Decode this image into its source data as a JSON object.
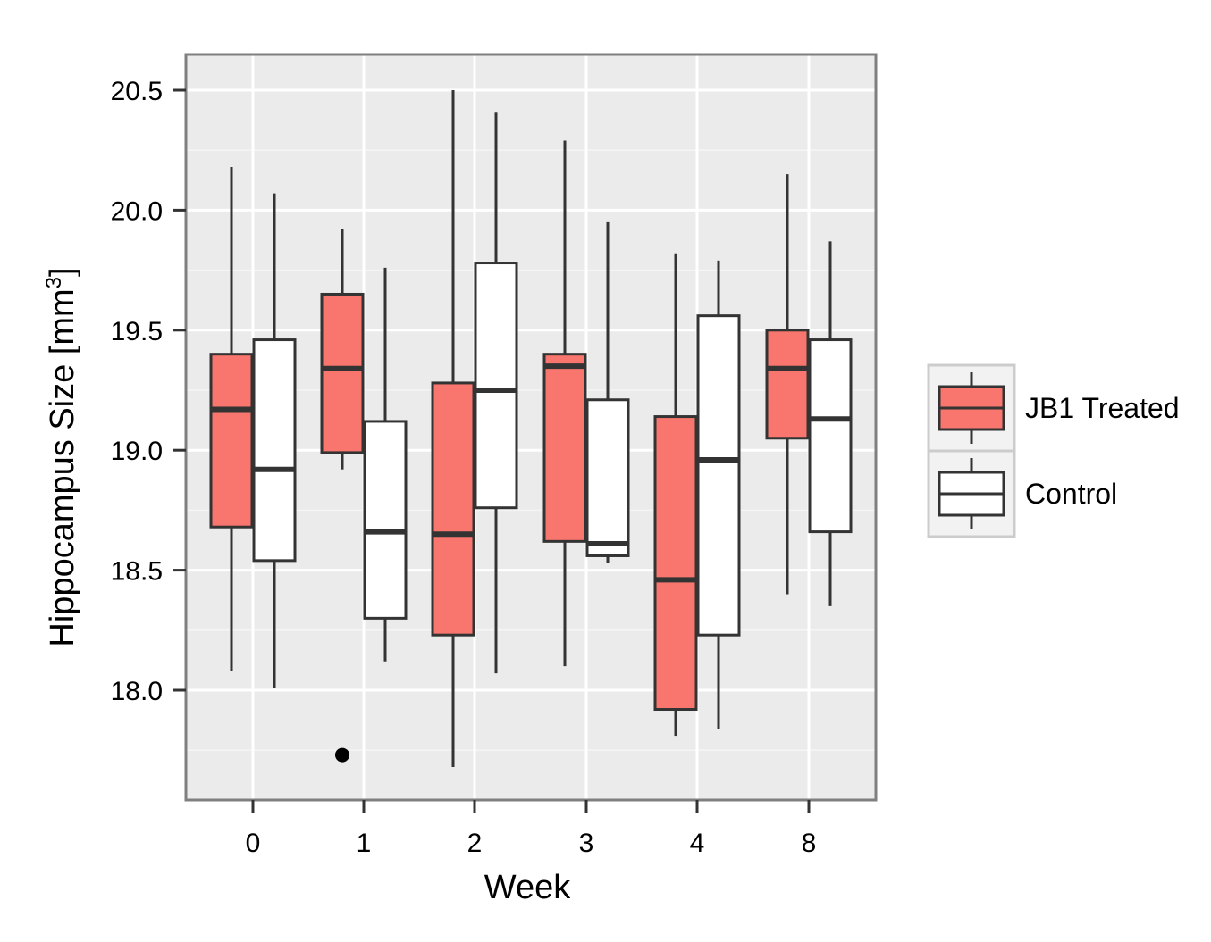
{
  "chart_data": {
    "type": "boxplot",
    "title": "",
    "xlabel": "Week",
    "ylabel": "Hippocampus Size [mm",
    "ylabel_sup": "3",
    "ylabel_end": "]",
    "ylim": [
      17.6,
      20.65
    ],
    "yticks": [
      18.0,
      18.5,
      19.0,
      19.5,
      20.0,
      20.5
    ],
    "ytick_labels": [
      "18.0",
      "18.5",
      "19.0",
      "19.5",
      "20.0",
      "20.5"
    ],
    "categories": [
      "0",
      "1",
      "2",
      "3",
      "4",
      "8"
    ],
    "series": [
      {
        "name": "JB1 Treated",
        "fill": "#F8766D",
        "boxes": [
          {
            "category": "0",
            "whisker_low": 18.08,
            "q1": 18.68,
            "median": 19.17,
            "q3": 19.4,
            "whisker_high": 20.18,
            "outliers": []
          },
          {
            "category": "1",
            "whisker_low": 18.92,
            "q1": 18.99,
            "median": 19.34,
            "q3": 19.65,
            "whisker_high": 19.92,
            "outliers": [
              17.73
            ]
          },
          {
            "category": "2",
            "whisker_low": 17.68,
            "q1": 18.23,
            "median": 18.65,
            "q3": 19.28,
            "whisker_high": 20.5,
            "outliers": []
          },
          {
            "category": "3",
            "whisker_low": 18.1,
            "q1": 18.62,
            "median": 19.35,
            "q3": 19.4,
            "whisker_high": 20.29,
            "outliers": []
          },
          {
            "category": "4",
            "whisker_low": 17.81,
            "q1": 17.92,
            "median": 18.46,
            "q3": 19.14,
            "whisker_high": 19.82,
            "outliers": []
          },
          {
            "category": "8",
            "whisker_low": 18.4,
            "q1": 19.05,
            "median": 19.34,
            "q3": 19.5,
            "whisker_high": 20.15,
            "outliers": []
          }
        ]
      },
      {
        "name": "Control",
        "fill": "#FFFFFF",
        "boxes": [
          {
            "category": "0",
            "whisker_low": 18.01,
            "q1": 18.54,
            "median": 18.92,
            "q3": 19.46,
            "whisker_high": 20.07,
            "outliers": []
          },
          {
            "category": "1",
            "whisker_low": 18.12,
            "q1": 18.3,
            "median": 18.66,
            "q3": 19.12,
            "whisker_high": 19.76,
            "outliers": []
          },
          {
            "category": "2",
            "whisker_low": 18.07,
            "q1": 18.76,
            "median": 19.25,
            "q3": 19.78,
            "whisker_high": 20.41,
            "outliers": []
          },
          {
            "category": "3",
            "whisker_low": 18.53,
            "q1": 18.56,
            "median": 18.61,
            "q3": 19.21,
            "whisker_high": 19.95,
            "outliers": []
          },
          {
            "category": "4",
            "whisker_low": 17.84,
            "q1": 18.23,
            "median": 18.96,
            "q3": 19.56,
            "whisker_high": 19.79,
            "outliers": []
          },
          {
            "category": "8",
            "whisker_low": 18.35,
            "q1": 18.66,
            "median": 19.13,
            "q3": 19.46,
            "whisker_high": 19.87,
            "outliers": []
          }
        ]
      }
    ],
    "legend": {
      "position": "right",
      "entries": [
        "JB1 Treated",
        "Control"
      ]
    },
    "grid": true
  },
  "colors": {
    "panel_background": "#EBEBEB",
    "grid_major": "#FFFFFF",
    "panel_border": "#7F7F7F",
    "box_stroke": "#333333",
    "treated_fill": "#F8766D",
    "control_fill": "#FFFFFF"
  }
}
